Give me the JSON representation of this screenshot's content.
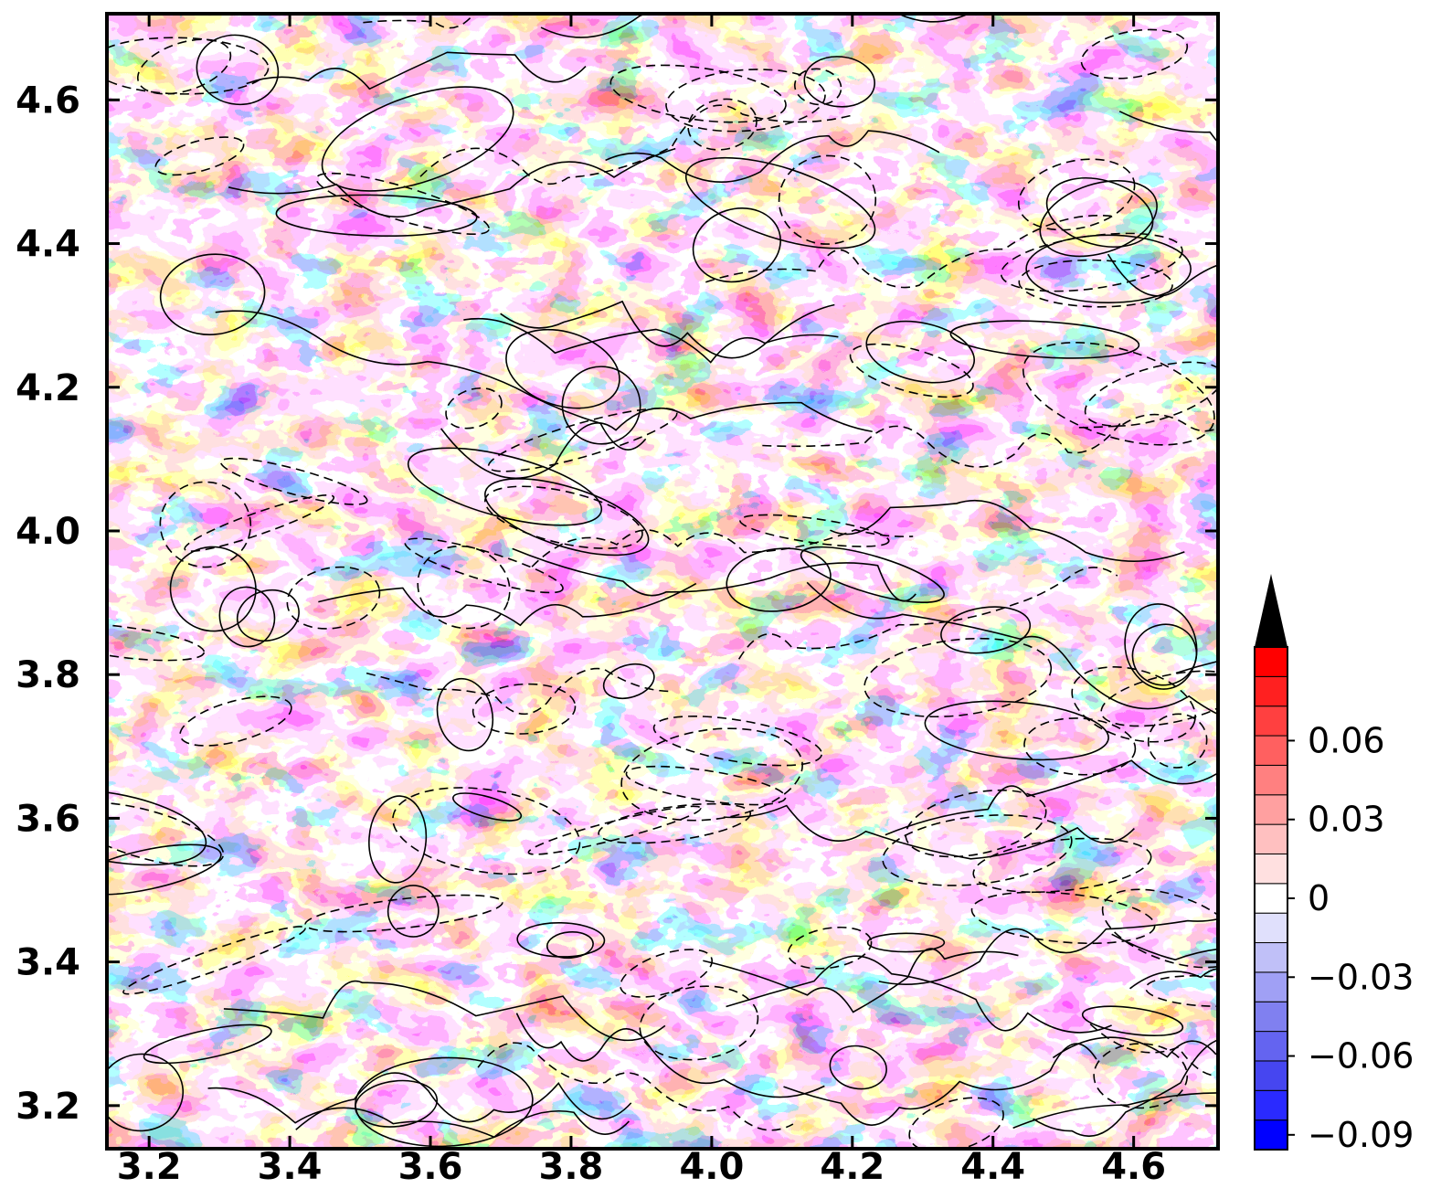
{
  "chart_data": {
    "type": "heatmap",
    "title": "",
    "xlabel": "",
    "ylabel": "",
    "xlim": [
      3.14,
      4.72
    ],
    "ylim": [
      3.14,
      4.72
    ],
    "x_ticks": [
      "3.2",
      "3.4",
      "3.6",
      "3.8",
      "4.0",
      "4.2",
      "4.4",
      "4.6"
    ],
    "y_ticks": [
      "3.2",
      "3.4",
      "3.6",
      "3.8",
      "4.0",
      "4.2",
      "4.4",
      "4.6"
    ],
    "field": "turbulent field with overlaid solid and dashed contour lines",
    "colorbar": {
      "colors": [
        "#0000ff",
        "#2a2aff",
        "#4646f0",
        "#6464f0",
        "#8080f0",
        "#a0a0f5",
        "#c0c0f8",
        "#e0e0fc",
        "#ffffff",
        "#ffe0e0",
        "#ffc0c0",
        "#ffa0a0",
        "#ff8080",
        "#ff6060",
        "#ff4040",
        "#ff2020",
        "#ff0000"
      ],
      "levels_min": -0.09,
      "levels_max": 0.09,
      "extend": "max",
      "tick_values": [
        0.06,
        0.03,
        0,
        -0.03,
        -0.06,
        -0.09
      ],
      "tick_labels": [
        "0.06",
        "0.03",
        "0",
        "−0.03",
        "−0.06",
        "−0.09"
      ]
    }
  }
}
